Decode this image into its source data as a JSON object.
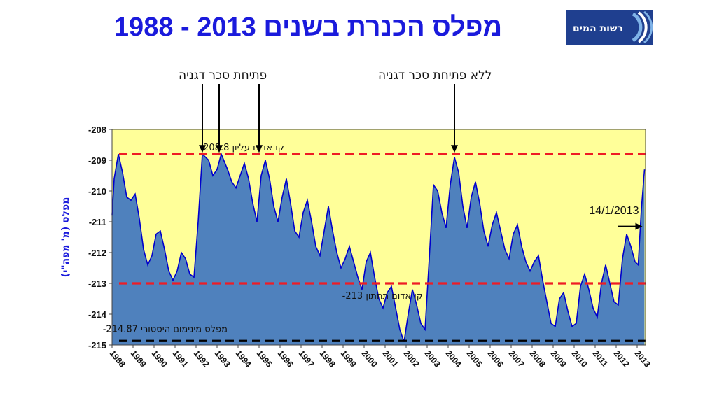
{
  "header": {
    "title": "מפלס הכנרת בשנים 2013 - 1988",
    "logo_text": "רשות המים"
  },
  "annotations": {
    "dam_open": "פתיחת סכר דגניה",
    "dam_closed": "ללא פתיחת סכר דגניה",
    "date_marker": "14/1/2013"
  },
  "colors": {
    "title": "#1a1adc",
    "plot_bg": "#ffff99",
    "fill": "#4f81bd",
    "line": "#0000cc",
    "red_line": "#ee1c25",
    "black_line": "#000000"
  },
  "chart_data": {
    "type": "area",
    "title": "מפלס הכנרת בשנים 2013 - 1988",
    "ylabel": "מפלס (מ' מפה\"י)",
    "ylim": [
      -215,
      -208
    ],
    "yticks": [
      "-208",
      "-209",
      "-210",
      "-211",
      "-212",
      "-213",
      "-214",
      "-215"
    ],
    "xlim": [
      1988,
      2013.4
    ],
    "xticks": [
      "1988",
      "1989",
      "1990",
      "1991",
      "1992",
      "1993",
      "1994",
      "1995",
      "1996",
      "1997",
      "1998",
      "1999",
      "2000",
      "2001",
      "2002",
      "2003",
      "2004",
      "2005",
      "2006",
      "2007",
      "2008",
      "2009",
      "2010",
      "2011",
      "2012",
      "2013"
    ],
    "grid": false,
    "reference_lines": [
      {
        "label": "קו אדום עליון 208.8-",
        "value": -208.8,
        "color": "#ee1c25",
        "style": "dashed"
      },
      {
        "label": "קו אדום תחתון 213-",
        "value": -213.0,
        "color": "#ee1c25",
        "style": "dashed"
      },
      {
        "label": "מפלס מינימום היסטורי 214.87-",
        "value": -214.87,
        "color": "#000000",
        "style": "dashed"
      }
    ],
    "arrows_dam_open_years": [
      1992.3,
      1993.1,
      1995.0
    ],
    "arrow_no_dam_year": 2004.3,
    "series": [
      {
        "x": [
          1988.0,
          1988.1,
          1988.3,
          1988.5,
          1988.7,
          1988.9,
          1989.1,
          1989.3,
          1989.5,
          1989.7,
          1989.9,
          1990.1,
          1990.3,
          1990.5,
          1990.7,
          1990.9,
          1991.1,
          1991.3,
          1991.5,
          1991.7,
          1991.9,
          1992.1,
          1992.3,
          1992.6,
          1992.8,
          1993.0,
          1993.2,
          1993.5,
          1993.7,
          1993.9,
          1994.1,
          1994.3,
          1994.5,
          1994.7,
          1994.9,
          1995.1,
          1995.3,
          1995.5,
          1995.7,
          1995.9,
          1996.1,
          1996.3,
          1996.5,
          1996.7,
          1996.9,
          1997.1,
          1997.3,
          1997.5,
          1997.7,
          1997.9,
          1998.1,
          1998.3,
          1998.5,
          1998.7,
          1998.9,
          1999.1,
          1999.3,
          1999.5,
          1999.7,
          1999.9,
          2000.1,
          2000.3,
          2000.5,
          2000.7,
          2000.9,
          2001.1,
          2001.3,
          2001.5,
          2001.7,
          2001.9,
          2002.1,
          2002.3,
          2002.5,
          2002.7,
          2002.9,
          2003.1,
          2003.3,
          2003.5,
          2003.7,
          2003.9,
          2004.1,
          2004.3,
          2004.5,
          2004.7,
          2004.9,
          2005.1,
          2005.3,
          2005.5,
          2005.7,
          2005.9,
          2006.1,
          2006.3,
          2006.5,
          2006.7,
          2006.9,
          2007.1,
          2007.3,
          2007.5,
          2007.7,
          2007.9,
          2008.1,
          2008.3,
          2008.5,
          2008.7,
          2008.9,
          2009.1,
          2009.3,
          2009.5,
          2009.7,
          2009.9,
          2010.1,
          2010.3,
          2010.5,
          2010.7,
          2010.9,
          2011.1,
          2011.3,
          2011.5,
          2011.7,
          2011.9,
          2012.1,
          2012.3,
          2012.5,
          2012.7,
          2012.9,
          2013.05,
          2013.2,
          2013.35
        ],
        "values": [
          -210.8,
          -209.6,
          -208.8,
          -209.4,
          -210.2,
          -210.3,
          -210.1,
          -210.9,
          -211.9,
          -212.4,
          -212.1,
          -211.4,
          -211.3,
          -211.9,
          -212.6,
          -212.9,
          -212.6,
          -212.0,
          -212.2,
          -212.7,
          -212.8,
          -211.0,
          -208.8,
          -209.0,
          -209.5,
          -209.3,
          -208.8,
          -209.3,
          -209.7,
          -209.9,
          -209.5,
          -209.1,
          -209.6,
          -210.4,
          -211.0,
          -209.5,
          -209.0,
          -209.6,
          -210.5,
          -211.0,
          -210.2,
          -209.6,
          -210.4,
          -211.3,
          -211.5,
          -210.7,
          -210.3,
          -211.0,
          -211.8,
          -212.1,
          -211.3,
          -210.5,
          -211.3,
          -212.0,
          -212.5,
          -212.2,
          -211.8,
          -212.3,
          -212.8,
          -213.2,
          -212.3,
          -212.0,
          -212.8,
          -213.5,
          -213.8,
          -213.3,
          -213.1,
          -213.8,
          -214.5,
          -214.9,
          -214.0,
          -213.2,
          -213.7,
          -214.3,
          -214.5,
          -212.2,
          -209.8,
          -210.0,
          -210.7,
          -211.2,
          -209.8,
          -208.9,
          -209.4,
          -210.5,
          -211.2,
          -210.2,
          -209.7,
          -210.4,
          -211.3,
          -211.8,
          -211.1,
          -210.7,
          -211.3,
          -211.9,
          -212.2,
          -211.4,
          -211.1,
          -211.8,
          -212.3,
          -212.6,
          -212.3,
          -212.1,
          -212.9,
          -213.6,
          -214.3,
          -214.4,
          -213.5,
          -213.3,
          -213.9,
          -214.4,
          -214.3,
          -213.1,
          -212.7,
          -213.2,
          -213.8,
          -214.1,
          -213.0,
          -212.4,
          -213.0,
          -213.6,
          -213.7,
          -212.2,
          -211.4,
          -211.8,
          -212.3,
          -212.4,
          -210.6,
          -209.3
        ]
      }
    ]
  }
}
